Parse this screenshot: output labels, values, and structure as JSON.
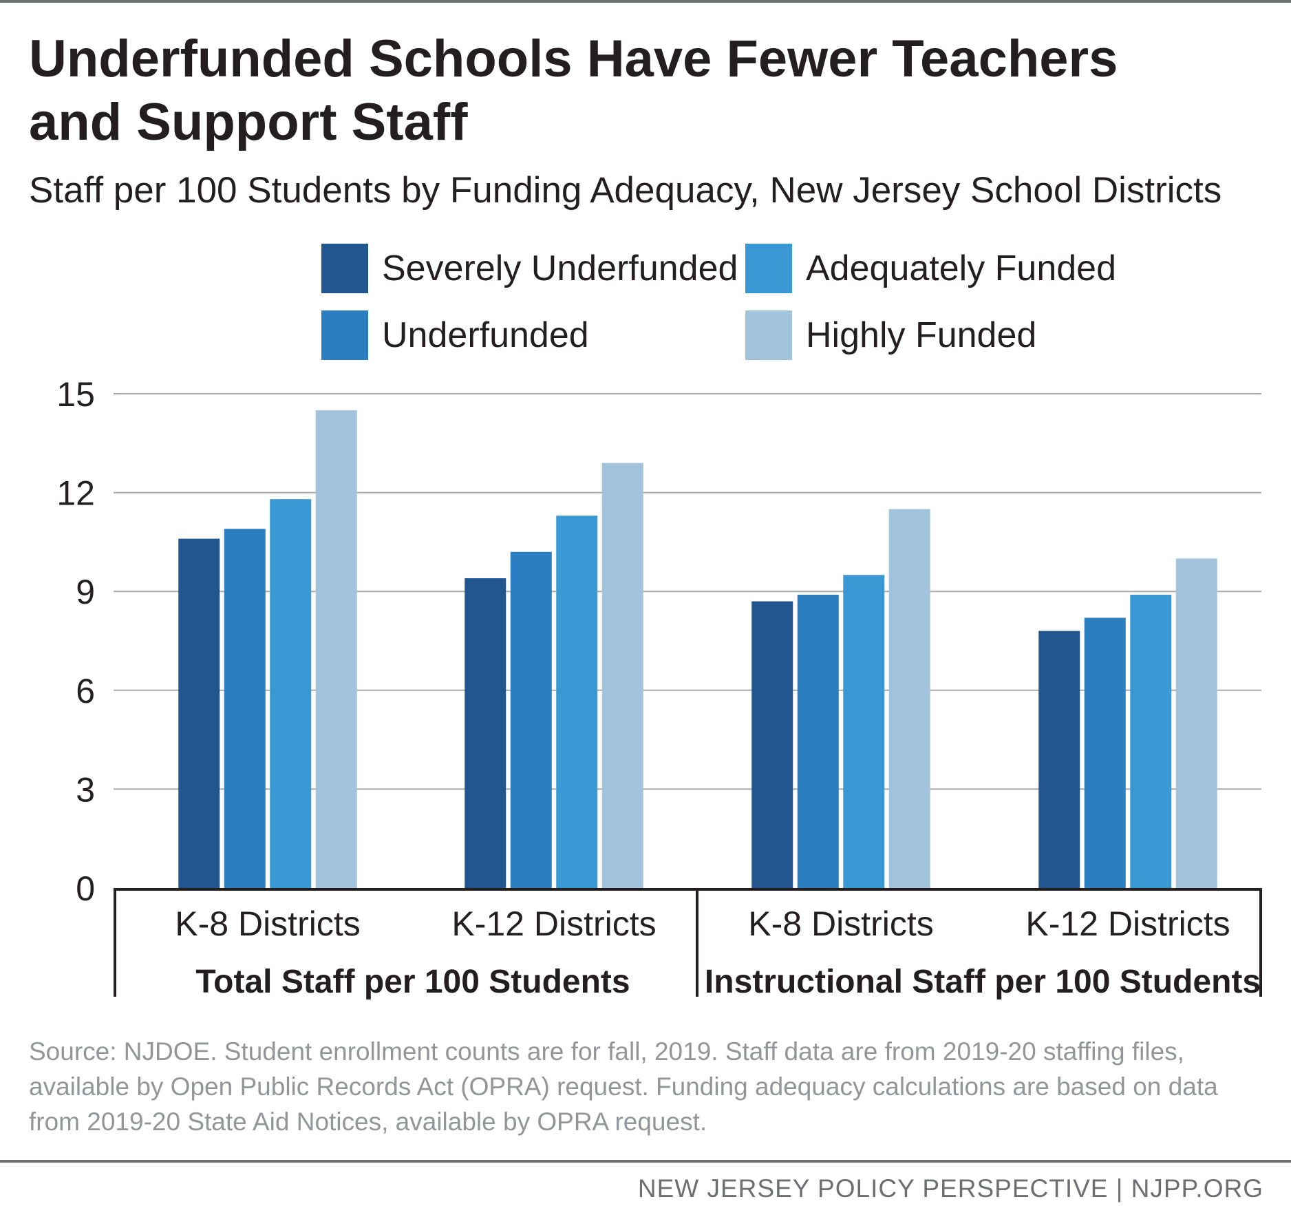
{
  "title": "Underfunded Schools Have Fewer Teachers and Support Staff",
  "subtitle": "Staff per 100 Students by Funding Adequacy, New Jersey School Districts",
  "legend": [
    {
      "label": "Severely Underfunded",
      "color": "#22568f"
    },
    {
      "label": "Adequately Funded",
      "color": "#3a99d4"
    },
    {
      "label": "Underfunded",
      "color": "#2b7fc1"
    },
    {
      "label": "Highly Funded",
      "color": "#a2c3dc"
    }
  ],
  "chart_data": {
    "type": "bar",
    "ylim": [
      0,
      15
    ],
    "yticks": [
      0,
      3,
      6,
      9,
      12,
      15
    ],
    "grid": true,
    "legend_position": "top",
    "groups": [
      {
        "label": "Total Staff per 100 Students",
        "categories": [
          "K-8 Districts",
          "K-12 Districts"
        ]
      },
      {
        "label": "Instructional Staff per 100 Students",
        "categories": [
          "K-8 Districts",
          "K-12 Districts"
        ]
      }
    ],
    "categories": [
      "K-8 Districts",
      "K-12 Districts",
      "K-8 Districts",
      "K-12 Districts"
    ],
    "series": [
      {
        "name": "Severely Underfunded",
        "color": "#22568f",
        "values": [
          10.6,
          9.4,
          8.7,
          7.8
        ]
      },
      {
        "name": "Underfunded",
        "color": "#2b7fc1",
        "values": [
          10.9,
          10.2,
          8.9,
          8.2
        ]
      },
      {
        "name": "Adequately Funded",
        "color": "#3a99d4",
        "values": [
          11.8,
          11.3,
          9.5,
          8.9
        ]
      },
      {
        "name": "Highly Funded",
        "color": "#a2c3dc",
        "values": [
          14.5,
          12.9,
          11.5,
          10.0
        ]
      }
    ]
  },
  "source": "Source: NJDOE. Student enrollment counts are for fall, 2019. Staff data are from 2019-20 staffing files, available by Open Public Records Act (OPRA) request. Funding adequacy calculations are based on data from 2019-20 State Aid Notices, available by OPRA request.",
  "footer": "NEW JERSEY POLICY PERSPECTIVE | NJPP.ORG"
}
